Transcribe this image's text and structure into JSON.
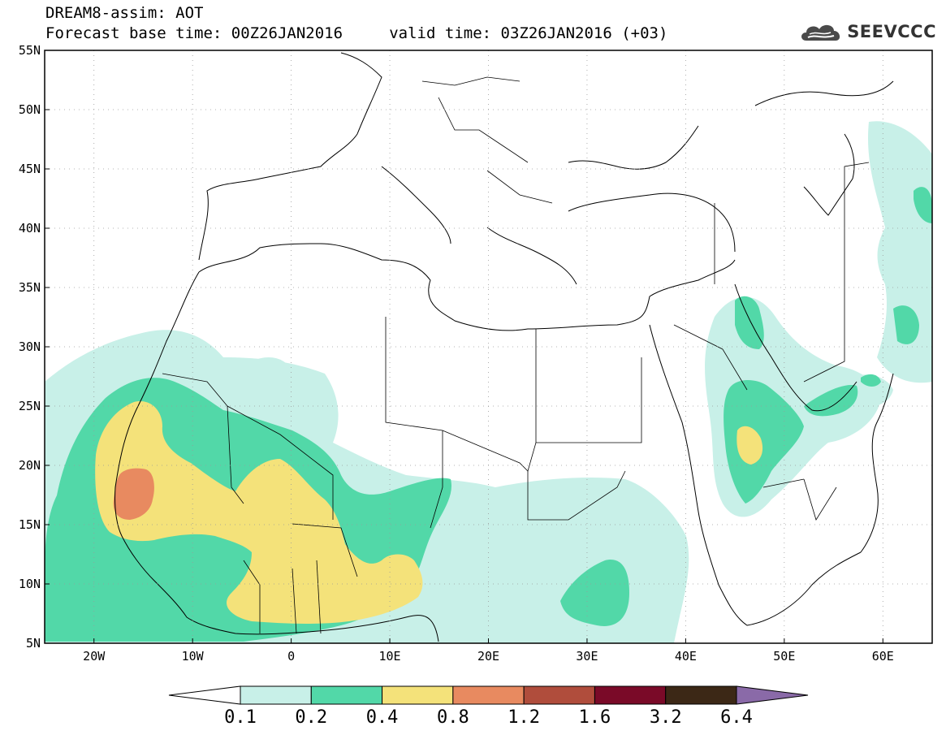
{
  "title": {
    "line1": "DREAM8-assim: AOT",
    "line2": "Forecast base time: 00Z26JAN2016     valid time: 03Z26JAN2016 (+03)"
  },
  "logo": {
    "text": "SEEVCCC",
    "icon": "cloud-icon"
  },
  "map": {
    "lat_labels": [
      "55N",
      "50N",
      "45N",
      "40N",
      "35N",
      "30N",
      "25N",
      "20N",
      "15N",
      "10N",
      "5N"
    ],
    "lon_labels": [
      "20W",
      "10W",
      "0",
      "10E",
      "20E",
      "30E",
      "40E",
      "50E",
      "60E"
    ],
    "lon_range": [
      -25,
      65
    ],
    "lat_range": [
      5,
      55
    ],
    "grid": true
  },
  "colorbar": {
    "levels": [
      "0.1",
      "0.2",
      "0.4",
      "0.8",
      "1.2",
      "1.6",
      "3.2",
      "6.4"
    ],
    "colors": [
      "#ffffff",
      "#c8f0e8",
      "#52d8a8",
      "#f4e27a",
      "#e88a60",
      "#b04d3c",
      "#7a0a28",
      "#3c2816",
      "#8a6aa8"
    ]
  },
  "colors": {
    "aot_01": "#c8f0e8",
    "aot_02": "#52d8a8",
    "aot_04": "#f4e27a",
    "aot_08": "#e88a60"
  }
}
